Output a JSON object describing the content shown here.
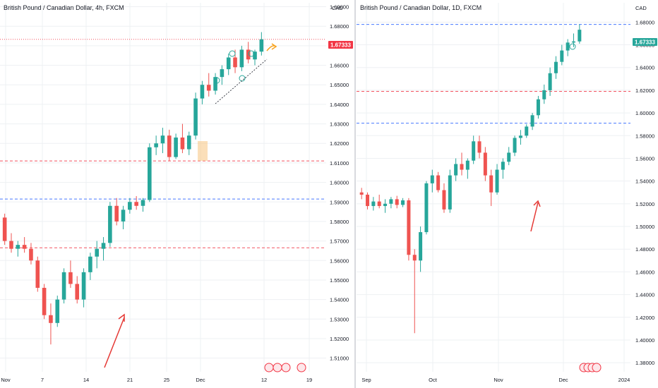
{
  "colors": {
    "up": "#26a69a",
    "down": "#ef5350",
    "blue_level": "#2962ff",
    "red_level": "#f23645",
    "arrow": "#e53935",
    "highlight": "#f7c480",
    "grid": "#eef0f3",
    "price_tag": "#f23645",
    "divider": "#b2b5be"
  },
  "charts": [
    {
      "id": "left",
      "title": "British Pound / Canadian Dollar, 4h, FXCM",
      "currency": "CAD",
      "price_label": "1.67333",
      "ytick_labels": [
        "1.69000",
        "1.68000",
        "1.67000",
        "1.66000",
        "1.65000",
        "1.64000",
        "1.63000",
        "1.62000",
        "1.61000",
        "1.60000",
        "1.59000",
        "1.58000",
        "1.57000",
        "1.56000",
        "1.55000",
        "1.54000",
        "1.53000",
        "1.52000",
        "1.51000"
      ],
      "xtick_labels": [
        "Nov",
        "7",
        "14",
        "21",
        "25",
        "Dec",
        "12",
        "19"
      ]
    },
    {
      "id": "right",
      "title": "British Pound / Canadian Dollar, 1D, FXCM",
      "currency": "CAD",
      "price_label": "1.67333",
      "ytick_labels": [
        "1.68000",
        "1.66000",
        "1.64000",
        "1.62000",
        "1.60000",
        "1.58000",
        "1.56000",
        "1.54000",
        "1.52000",
        "1.50000",
        "1.48000",
        "1.46000",
        "1.44000",
        "1.42000",
        "1.40000",
        "1.38000"
      ],
      "xtick_labels": [
        "Sep",
        "Oct",
        "Nov",
        "Dec",
        "2024"
      ]
    }
  ],
  "chart_data": [
    {
      "type": "candlestick",
      "title": "British Pound / Canadian Dollar, 4h, FXCM",
      "currency": "CAD",
      "ylim": [
        1.503,
        1.692
      ],
      "last_price": 1.67333,
      "levels": [
        {
          "value": 1.5915,
          "style": "blue-dashed"
        },
        {
          "value": 1.611,
          "style": "red-dashed"
        },
        {
          "value": 1.5665,
          "style": "red-dashed"
        },
        {
          "value": 1.6733,
          "style": "red-dotted"
        }
      ],
      "ohlc_approx": [
        [
          1.582,
          1.584,
          1.568,
          1.57
        ],
        [
          1.57,
          1.574,
          1.564,
          1.566
        ],
        [
          1.566,
          1.57,
          1.562,
          1.568
        ],
        [
          1.568,
          1.572,
          1.564,
          1.566
        ],
        [
          1.566,
          1.569,
          1.558,
          1.56
        ],
        [
          1.56,
          1.562,
          1.544,
          1.546
        ],
        [
          1.546,
          1.548,
          1.53,
          1.532
        ],
        [
          1.532,
          1.538,
          1.517,
          1.528
        ],
        [
          1.528,
          1.542,
          1.526,
          1.54
        ],
        [
          1.54,
          1.556,
          1.538,
          1.554
        ],
        [
          1.554,
          1.56,
          1.546,
          1.548
        ],
        [
          1.548,
          1.552,
          1.538,
          1.54
        ],
        [
          1.54,
          1.556,
          1.536,
          1.554
        ],
        [
          1.554,
          1.564,
          1.55,
          1.562
        ],
        [
          1.562,
          1.57,
          1.556,
          1.566
        ],
        [
          1.566,
          1.572,
          1.56,
          1.569
        ],
        [
          1.569,
          1.59,
          1.567,
          1.588
        ],
        [
          1.588,
          1.592,
          1.578,
          1.58
        ],
        [
          1.58,
          1.588,
          1.576,
          1.586
        ],
        [
          1.586,
          1.592,
          1.584,
          1.59
        ],
        [
          1.59,
          1.593,
          1.586,
          1.588
        ],
        [
          1.588,
          1.592,
          1.585,
          1.591
        ],
        [
          1.591,
          1.62,
          1.59,
          1.618
        ],
        [
          1.618,
          1.624,
          1.614,
          1.62
        ],
        [
          1.62,
          1.628,
          1.615,
          1.624
        ],
        [
          1.624,
          1.627,
          1.611,
          1.613
        ],
        [
          1.613,
          1.625,
          1.612,
          1.623
        ],
        [
          1.623,
          1.63,
          1.615,
          1.617
        ],
        [
          1.617,
          1.626,
          1.614,
          1.624
        ],
        [
          1.624,
          1.646,
          1.622,
          1.643
        ],
        [
          1.643,
          1.652,
          1.64,
          1.65
        ],
        [
          1.65,
          1.656,
          1.644,
          1.647
        ],
        [
          1.647,
          1.656,
          1.645,
          1.654
        ],
        [
          1.654,
          1.66,
          1.65,
          1.658
        ],
        [
          1.658,
          1.666,
          1.655,
          1.664
        ],
        [
          1.664,
          1.668,
          1.656,
          1.659
        ],
        [
          1.659,
          1.67,
          1.657,
          1.668
        ],
        [
          1.668,
          1.672,
          1.661,
          1.663
        ],
        [
          1.663,
          1.668,
          1.66,
          1.667
        ],
        [
          1.667,
          1.677,
          1.665,
          1.6733
        ]
      ]
    },
    {
      "type": "candlestick",
      "title": "British Pound / Canadian Dollar, 1D, FXCM",
      "currency": "CAD",
      "ylim": [
        1.372,
        1.697
      ],
      "last_price": 1.67333,
      "levels": [
        {
          "value": 1.678,
          "style": "blue-dashed"
        },
        {
          "value": 1.619,
          "style": "red-dashed"
        },
        {
          "value": 1.591,
          "style": "blue-dashed"
        }
      ],
      "ohlc_approx": [
        [
          1.53,
          1.534,
          1.524,
          1.528
        ],
        [
          1.528,
          1.53,
          1.515,
          1.518
        ],
        [
          1.518,
          1.526,
          1.514,
          1.522
        ],
        [
          1.522,
          1.528,
          1.516,
          1.518
        ],
        [
          1.518,
          1.524,
          1.512,
          1.52
        ],
        [
          1.52,
          1.526,
          1.516,
          1.524
        ],
        [
          1.524,
          1.527,
          1.516,
          1.519
        ],
        [
          1.519,
          1.525,
          1.517,
          1.523
        ],
        [
          1.523,
          1.525,
          1.47,
          1.475
        ],
        [
          1.475,
          1.48,
          1.406,
          1.47
        ],
        [
          1.47,
          1.5,
          1.46,
          1.495
        ],
        [
          1.495,
          1.54,
          1.493,
          1.538
        ],
        [
          1.538,
          1.55,
          1.53,
          1.545
        ],
        [
          1.545,
          1.548,
          1.53,
          1.532
        ],
        [
          1.532,
          1.538,
          1.512,
          1.515
        ],
        [
          1.515,
          1.55,
          1.512,
          1.545
        ],
        [
          1.545,
          1.56,
          1.54,
          1.555
        ],
        [
          1.555,
          1.565,
          1.545,
          1.55
        ],
        [
          1.55,
          1.56,
          1.542,
          1.558
        ],
        [
          1.558,
          1.58,
          1.555,
          1.575
        ],
        [
          1.575,
          1.58,
          1.56,
          1.565
        ],
        [
          1.565,
          1.57,
          1.54,
          1.545
        ],
        [
          1.545,
          1.55,
          1.518,
          1.53
        ],
        [
          1.53,
          1.555,
          1.528,
          1.55
        ],
        [
          1.55,
          1.56,
          1.542,
          1.557
        ],
        [
          1.557,
          1.57,
          1.554,
          1.565
        ],
        [
          1.565,
          1.58,
          1.562,
          1.578
        ],
        [
          1.578,
          1.585,
          1.572,
          1.58
        ],
        [
          1.58,
          1.59,
          1.578,
          1.588
        ],
        [
          1.588,
          1.6,
          1.585,
          1.598
        ],
        [
          1.598,
          1.615,
          1.595,
          1.612
        ],
        [
          1.612,
          1.625,
          1.608,
          1.62
        ],
        [
          1.62,
          1.64,
          1.615,
          1.635
        ],
        [
          1.635,
          1.65,
          1.63,
          1.645
        ],
        [
          1.645,
          1.66,
          1.642,
          1.655
        ],
        [
          1.655,
          1.665,
          1.65,
          1.662
        ],
        [
          1.662,
          1.67,
          1.658,
          1.663
        ],
        [
          1.663,
          1.678,
          1.661,
          1.6733
        ]
      ]
    }
  ]
}
